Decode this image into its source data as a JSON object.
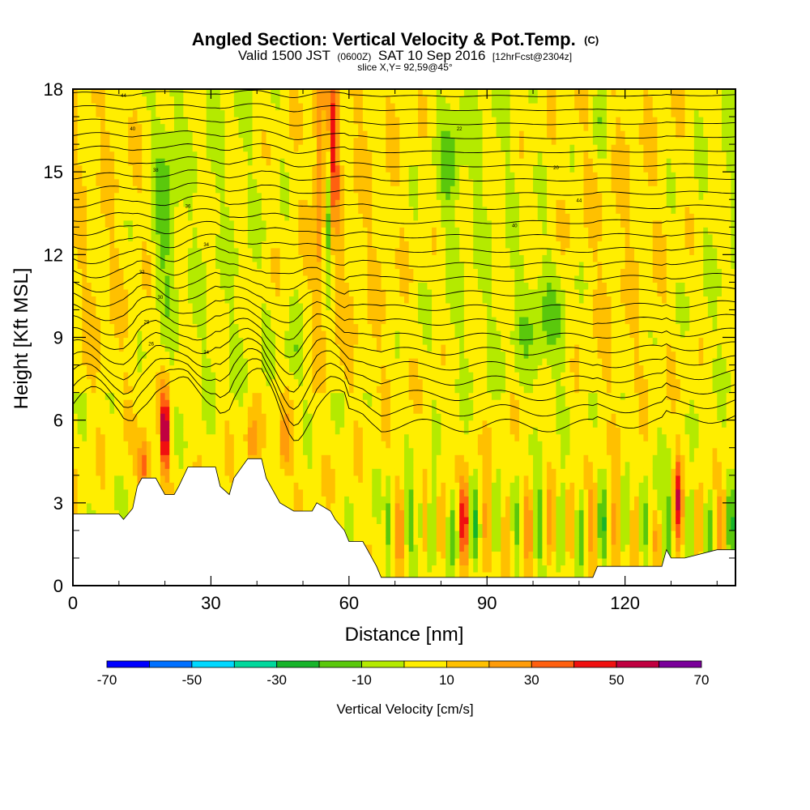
{
  "title": {
    "main": "Angled Section: Vertical Velocity & Pot.Temp.",
    "main_suffix": "(C)",
    "sub_a": "Valid 1500 JST",
    "sub_b": "(0600Z)",
    "sub_c": "SAT 10 Sep 2016",
    "sub_d": "[12hrFcst@2304z]",
    "slice": "slice X,Y= 92,59@45°"
  },
  "chart_data": {
    "type": "heatmap",
    "xlabel": "Distance [nm]",
    "ylabel": "Height [Kft MSL]",
    "xlim": [
      0,
      144
    ],
    "ylim": [
      0,
      18
    ],
    "x_ticks": [
      "0",
      "30",
      "60",
      "90",
      "120"
    ],
    "x_tick_values": [
      0,
      30,
      60,
      90,
      120
    ],
    "y_ticks": [
      "0",
      "3",
      "6",
      "9",
      "12",
      "15",
      "18"
    ],
    "y_tick_values": [
      0,
      3,
      6,
      9,
      12,
      15,
      18
    ],
    "colorbar": {
      "label": "Vertical Velocity [cm/s]",
      "tick_labels": [
        "-70",
        "-50",
        "-30",
        "-10",
        "10",
        "30",
        "50",
        "70"
      ],
      "tick_values": [
        -70,
        -50,
        -30,
        -10,
        10,
        30,
        50,
        70
      ],
      "bins": [
        -70,
        -60,
        -50,
        -40,
        -30,
        -20,
        -10,
        0,
        10,
        20,
        30,
        40,
        50,
        60,
        70
      ],
      "colors": [
        "#0000ff",
        "#0070ff",
        "#00d8ff",
        "#00d89c",
        "#17b42a",
        "#5ac80c",
        "#b4ea00",
        "#ffee00",
        "#ffc000",
        "#ff9c0a",
        "#ff6010",
        "#f01010",
        "#c00040",
        "#7a009a"
      ]
    },
    "terrain_kft": [
      [
        0,
        2.6
      ],
      [
        10,
        2.6
      ],
      [
        11,
        2.4
      ],
      [
        13,
        2.8
      ],
      [
        14,
        3.6
      ],
      [
        15,
        3.9
      ],
      [
        18,
        3.9
      ],
      [
        19,
        3.6
      ],
      [
        20,
        3.3
      ],
      [
        22,
        3.3
      ],
      [
        23,
        3.6
      ],
      [
        25,
        4.3
      ],
      [
        31,
        4.3
      ],
      [
        32,
        3.6
      ],
      [
        34,
        3.3
      ],
      [
        35,
        3.9
      ],
      [
        38,
        4.6
      ],
      [
        41,
        4.6
      ],
      [
        42,
        3.9
      ],
      [
        44,
        3.3
      ],
      [
        45,
        3.0
      ],
      [
        48,
        2.7
      ],
      [
        52,
        2.7
      ],
      [
        53,
        3.0
      ],
      [
        56,
        2.7
      ],
      [
        57,
        2.4
      ],
      [
        59,
        2.0
      ],
      [
        60,
        1.6
      ],
      [
        63,
        1.6
      ],
      [
        64,
        1.3
      ],
      [
        66,
        0.7
      ],
      [
        67,
        0.3
      ],
      [
        74,
        0.3
      ],
      [
        113,
        0.3
      ],
      [
        114,
        0.7
      ],
      [
        128,
        0.7
      ],
      [
        129,
        1.3
      ],
      [
        130,
        1.0
      ],
      [
        133,
        1.0
      ],
      [
        140,
        1.3
      ],
      [
        144,
        1.3
      ]
    ],
    "theta_contour_labels": [
      "44",
      "40",
      "38",
      "36",
      "34",
      "32",
      "30",
      "28",
      "26",
      "24",
      "22",
      "20"
    ]
  }
}
